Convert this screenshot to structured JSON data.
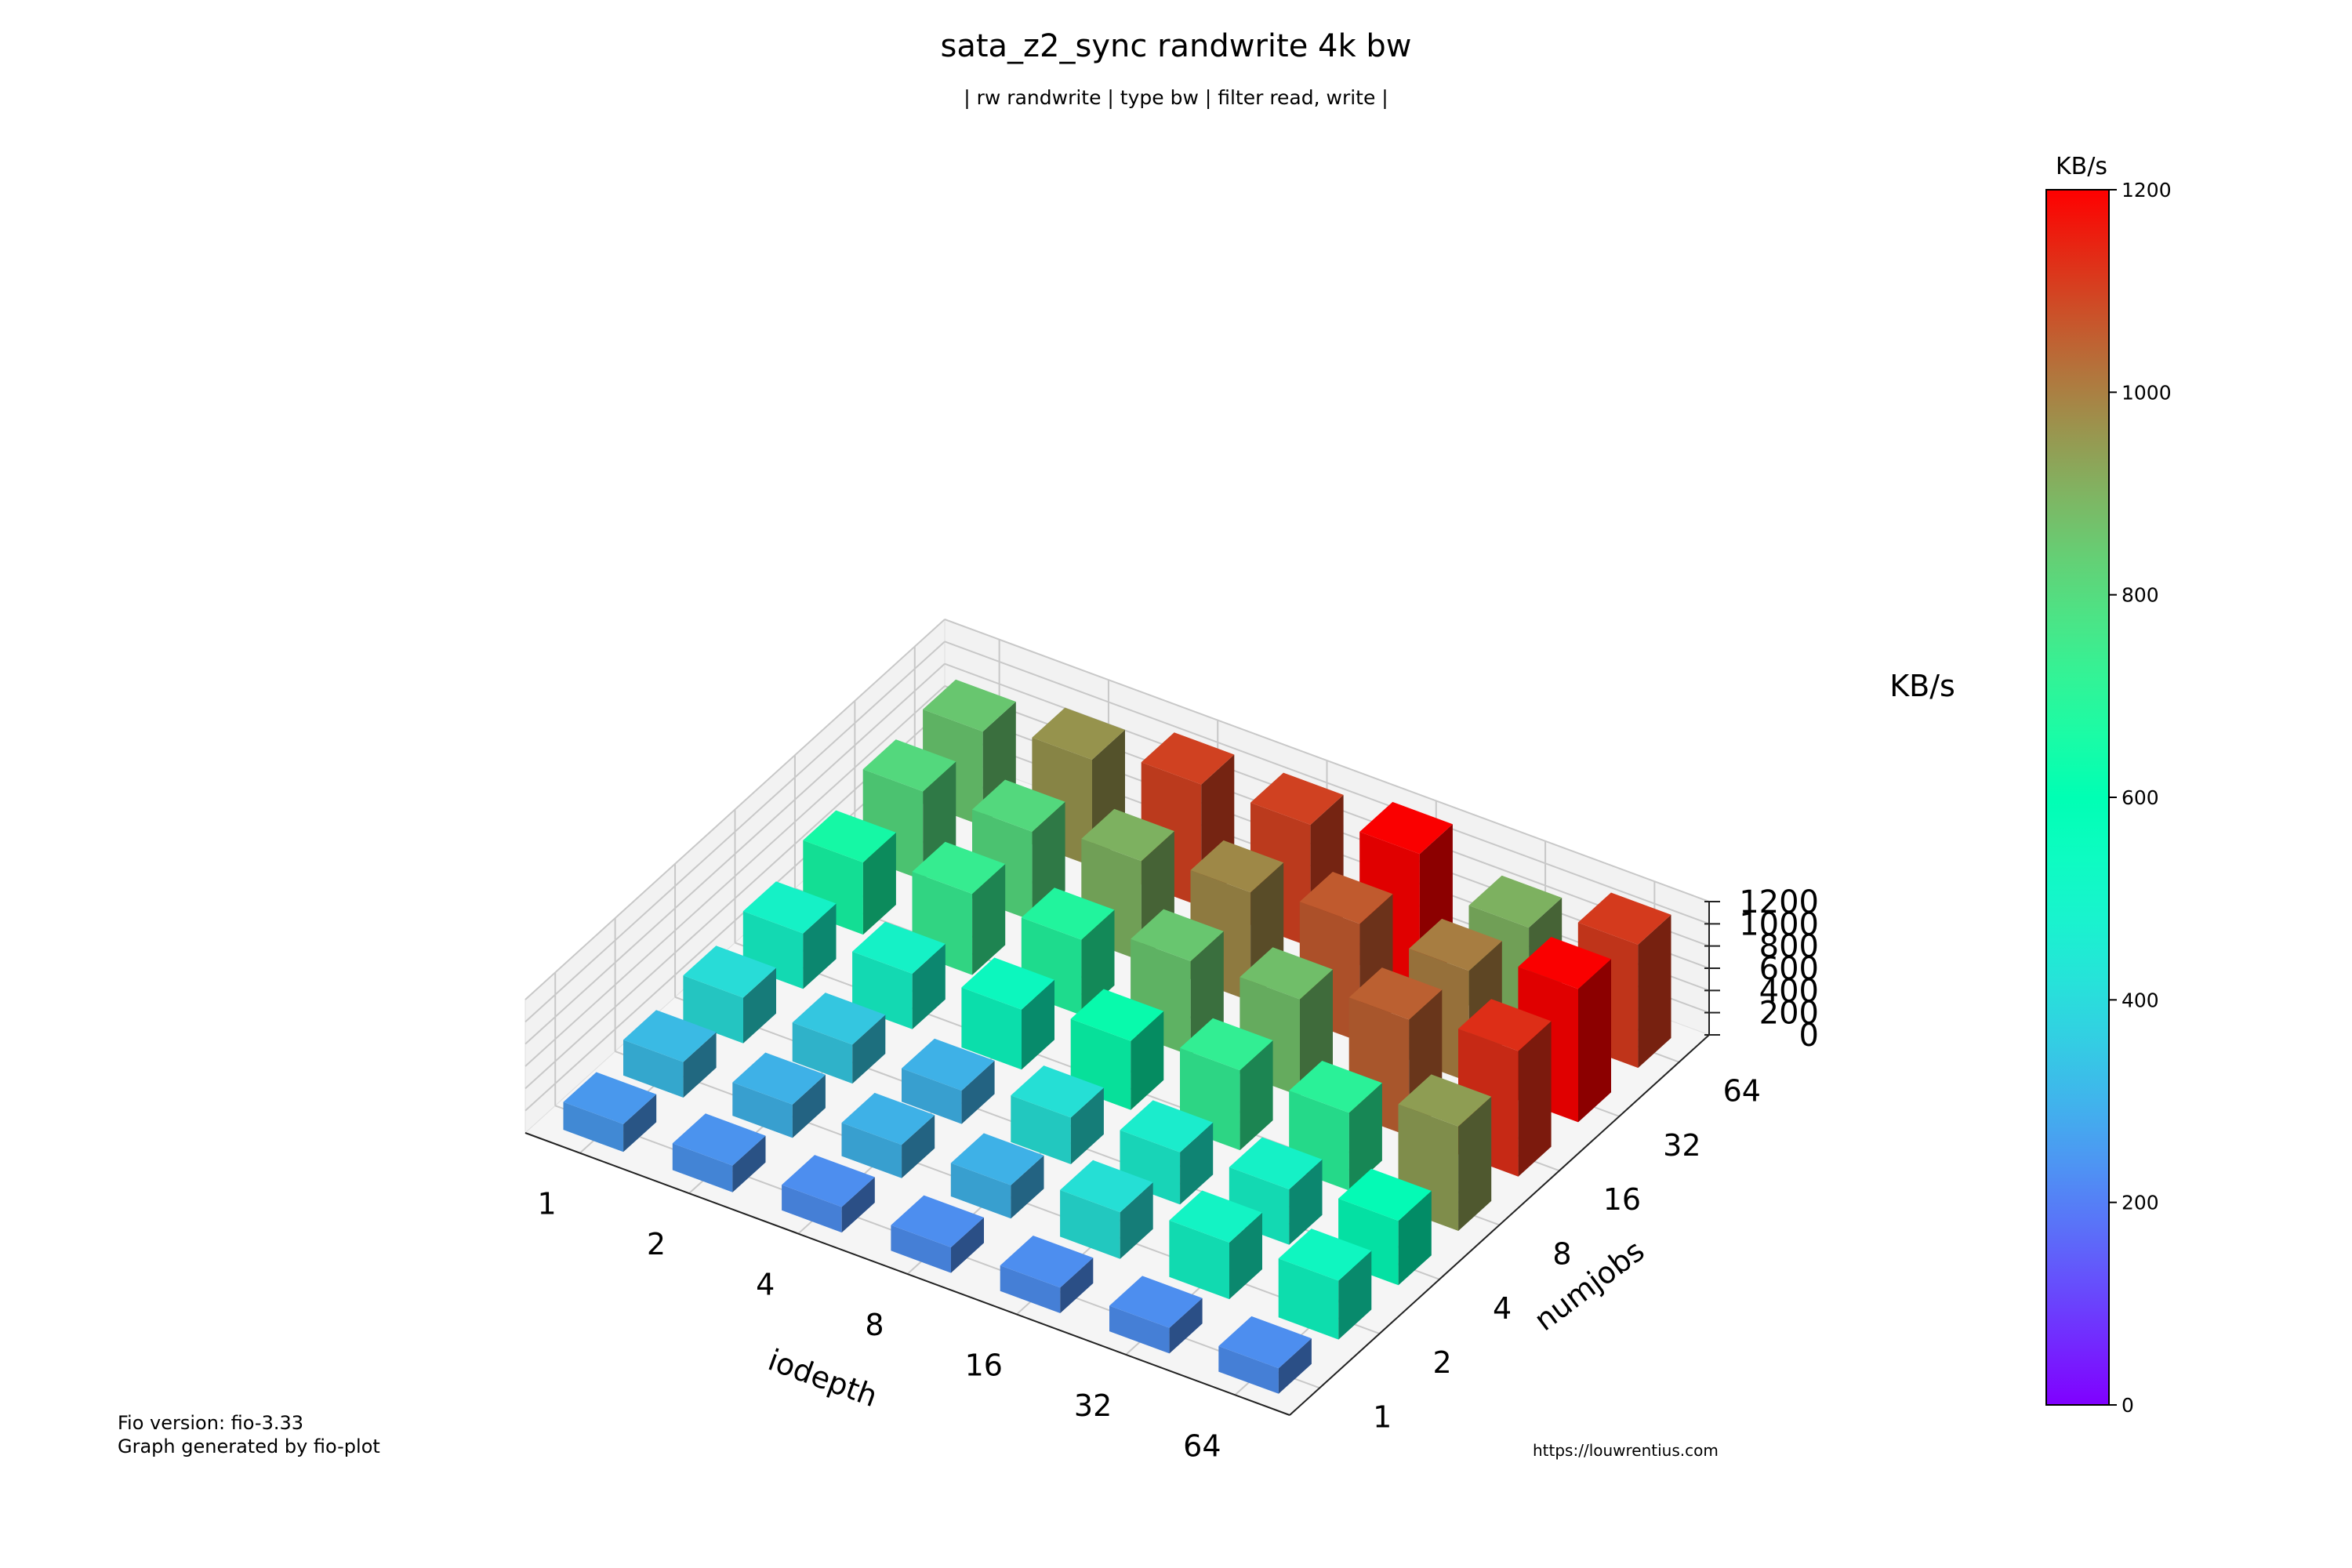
{
  "chart_data": {
    "type": "bar3d",
    "title": "sata_z2_sync randwrite 4k bw",
    "subtitle": "| rw randwrite | type bw | filter read, write |",
    "xlabel": "iodepth",
    "ylabel": "numjobs",
    "zlabel": "KB/s",
    "x_categories": [
      "1",
      "2",
      "4",
      "8",
      "16",
      "32",
      "64"
    ],
    "y_categories": [
      "1",
      "2",
      "4",
      "8",
      "16",
      "32",
      "64"
    ],
    "zlim": [
      0,
      1200
    ],
    "z_ticks": [
      "0",
      "200",
      "400",
      "600",
      "800",
      "1000",
      "1200"
    ],
    "values_by_numjobs": [
      {
        "numjobs": "1",
        "values": [
          250,
          240,
          230,
          230,
          230,
          230,
          230
        ]
      },
      {
        "numjobs": "2",
        "values": [
          320,
          300,
          300,
          300,
          420,
          510,
          530
        ]
      },
      {
        "numjobs": "4",
        "values": [
          410,
          350,
          300,
          420,
          470,
          500,
          580
        ]
      },
      {
        "numjobs": "8",
        "values": [
          500,
          500,
          540,
          620,
          720,
          700,
          940
        ]
      },
      {
        "numjobs": "16",
        "values": [
          650,
          730,
          680,
          850,
          870,
          1050,
          1130
        ]
      },
      {
        "numjobs": "32",
        "values": [
          800,
          800,
          900,
          980,
          1060,
          1000,
          1200
        ]
      },
      {
        "numjobs": "64",
        "values": [
          850,
          960,
          1100,
          1100,
          1200,
          900,
          1110
        ]
      }
    ],
    "colorbar": {
      "title": "KB/s",
      "range": [
        0,
        1200
      ],
      "ticks": [
        "0",
        "200",
        "400",
        "600",
        "800",
        "1000",
        "1200"
      ],
      "colormap": "rainbow"
    },
    "grid": true
  },
  "footer": {
    "fio_version": "Fio version: fio-3.33",
    "generator": "Graph generated by fio-plot",
    "url": "https://louwrentius.com"
  }
}
